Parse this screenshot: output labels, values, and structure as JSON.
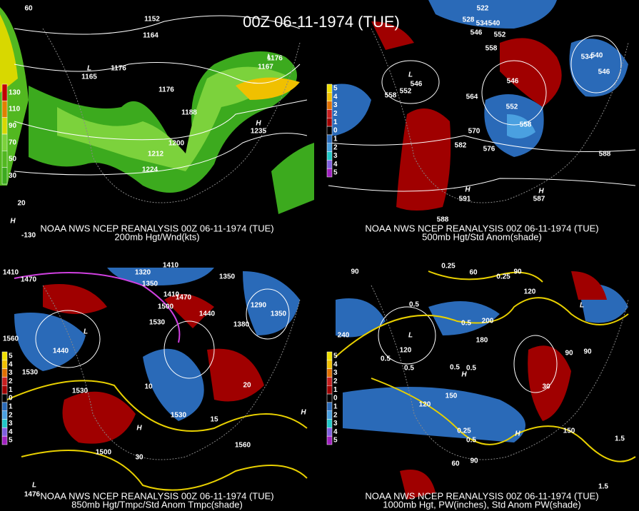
{
  "title": "00Z 06-11-1974 (TUE)",
  "panels": [
    {
      "source": "NOAA NWS NCEP REANALYSIS 00Z 06-11-1974 (TUE)",
      "caption": "200mb Hgt/Wnd(kts)",
      "legend": [
        "130",
        "110",
        "90",
        "70",
        "50",
        "30"
      ],
      "labels": [
        "1152",
        "1164",
        "1176",
        "1176",
        "1176",
        "1165",
        "1188",
        "1200",
        "1212",
        "1224",
        "1235",
        "1167",
        "60",
        "20",
        "-130",
        "L",
        "L",
        "H",
        "H"
      ]
    },
    {
      "source": "NOAA NWS NCEP REANALYSIS 00Z 06-11-1974 (TUE)",
      "caption": "500mb Hgt/Std Anom(shade)",
      "legend": [
        "5",
        "4",
        "3",
        "2",
        "1",
        "0",
        "1",
        "2",
        "3",
        "4",
        "5"
      ],
      "labels": [
        "522",
        "528",
        "534",
        "540",
        "546",
        "552",
        "558",
        "546",
        "552",
        "558",
        "564",
        "546",
        "552",
        "558",
        "570",
        "582",
        "576",
        "588",
        "591",
        "587",
        "588",
        "534",
        "540",
        "546",
        "L",
        "H",
        "H"
      ]
    },
    {
      "source": "NOAA NWS NCEP REANALYSIS 00Z 06-11-1974 (TUE)",
      "caption": "850mb Hgt/Tmpc/Std Anom Tmpc(shade)",
      "legend": [
        "5",
        "4",
        "3",
        "2",
        "1",
        "0",
        "1",
        "2",
        "3",
        "4",
        "5"
      ],
      "labels": [
        "1410",
        "1470",
        "1320",
        "1350",
        "1410",
        "1410",
        "1470",
        "1500",
        "1440",
        "1350",
        "1380",
        "1290",
        "1350",
        "1530",
        "1560",
        "1440",
        "1530",
        "1530",
        "1530",
        "1500",
        "1560",
        "20",
        "10",
        "15",
        "30",
        "1476",
        "L",
        "L",
        "H",
        "H"
      ]
    },
    {
      "source": "NOAA NWS NCEP REANALYSIS 00Z 06-11-1974 (TUE)",
      "caption": "1000mb Hgt, PW(inches), Std Anom PW(shade)",
      "legend": [
        "5",
        "4",
        "3",
        "2",
        "1",
        "0",
        "1",
        "2",
        "3",
        "4",
        "5"
      ],
      "labels": [
        "0.25",
        "60",
        "90",
        "90",
        "0.5",
        "0.5",
        "0.5",
        "0.5",
        "0.5",
        "0.5",
        "120",
        "180",
        "200",
        "150",
        "120",
        "0.25",
        "0.5",
        "90",
        "60",
        "150",
        "30",
        "1.5",
        "1.5",
        "240",
        "90",
        "90",
        "120",
        "0.25",
        "L",
        "L",
        "H",
        "H"
      ]
    }
  ]
}
